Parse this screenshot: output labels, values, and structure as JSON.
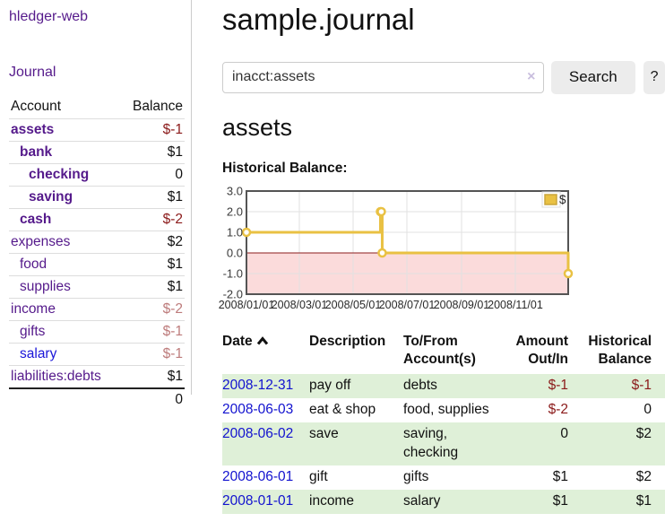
{
  "brand": "hledger-web",
  "nav": {
    "journal": "Journal"
  },
  "page": {
    "title": "sample.journal",
    "account_heading": "assets",
    "chart_title": "Historical Balance:"
  },
  "search": {
    "value": "inacct:assets",
    "clear_icon": "×",
    "submit_label": "Search",
    "help_label": "?"
  },
  "sidebar_table": {
    "account_header": "Account",
    "balance_header": "Balance",
    "rows": [
      {
        "name": "assets",
        "balance": "$-1",
        "indent": 1,
        "bold": true,
        "balance_style": "negstrong",
        "link_color": "purple"
      },
      {
        "name": "bank",
        "balance": "$1",
        "indent": 2,
        "bold": true,
        "balance_style": "normal",
        "link_color": "purple"
      },
      {
        "name": "checking",
        "balance": "0",
        "indent": 3,
        "bold": true,
        "balance_style": "normal",
        "link_color": "purple"
      },
      {
        "name": "saving",
        "balance": "$1",
        "indent": 3,
        "bold": true,
        "balance_style": "normal",
        "link_color": "purple"
      },
      {
        "name": "cash",
        "balance": "$-2",
        "indent": 2,
        "bold": true,
        "balance_style": "negstrong",
        "link_color": "purple"
      },
      {
        "name": "expenses",
        "balance": "$2",
        "indent": 1,
        "bold": false,
        "balance_style": "normal",
        "link_color": "purple"
      },
      {
        "name": "food",
        "balance": "$1",
        "indent": 2,
        "bold": false,
        "balance_style": "normal",
        "link_color": "purple"
      },
      {
        "name": "supplies",
        "balance": "$1",
        "indent": 2,
        "bold": false,
        "balance_style": "normal",
        "link_color": "purple"
      },
      {
        "name": "income",
        "balance": "$-2",
        "indent": 1,
        "bold": false,
        "balance_style": "negpale",
        "link_color": "purple"
      },
      {
        "name": "gifts",
        "balance": "$-1",
        "indent": 2,
        "bold": false,
        "balance_style": "negpale",
        "link_color": "purple"
      },
      {
        "name": "salary",
        "balance": "$-1",
        "indent": 2,
        "bold": false,
        "balance_style": "negpale",
        "link_color": "blue"
      },
      {
        "name": "liabilities:debts",
        "balance": "$1",
        "indent": 1,
        "bold": false,
        "balance_style": "normal",
        "link_color": "purple"
      }
    ],
    "total": "0"
  },
  "register_table": {
    "headers": {
      "date": "Date",
      "description": "Description",
      "accounts": "To/From Account(s)",
      "amount": "Amount Out/In",
      "balance": "Historical Balance"
    },
    "sort": "ascending",
    "rows": [
      {
        "date": "2008-12-31",
        "description": "pay off",
        "accounts": "debts",
        "amount": "$-1",
        "amount_neg": true,
        "balance": "$-1",
        "balance_neg": true
      },
      {
        "date": "2008-06-03",
        "description": "eat & shop",
        "accounts": "food, supplies",
        "amount": "$-2",
        "amount_neg": true,
        "balance": "0",
        "balance_neg": false
      },
      {
        "date": "2008-06-02",
        "description": "save",
        "accounts": "saving, checking",
        "amount": "0",
        "amount_neg": false,
        "balance": "$2",
        "balance_neg": false
      },
      {
        "date": "2008-06-01",
        "description": "gift",
        "accounts": "gifts",
        "amount": "$1",
        "amount_neg": false,
        "balance": "$2",
        "balance_neg": false
      },
      {
        "date": "2008-01-01",
        "description": "income",
        "accounts": "salary",
        "amount": "$1",
        "amount_neg": false,
        "balance": "$1",
        "balance_neg": false
      }
    ]
  },
  "chart_data": {
    "type": "line",
    "title": "Historical Balance:",
    "step": true,
    "series": [
      {
        "name": "$",
        "points": [
          [
            "2008-01-01",
            1
          ],
          [
            "2008-06-01",
            2
          ],
          [
            "2008-06-02",
            2
          ],
          [
            "2008-06-03",
            0
          ],
          [
            "2008-12-31",
            -1
          ]
        ]
      }
    ],
    "ylim": [
      -2,
      3
    ],
    "yticks": [
      "3.0",
      "2.0",
      "1.0",
      "0.0",
      "-1.0",
      "-2.0"
    ],
    "xticks": [
      "2008/01/01",
      "2008/03/01",
      "2008/05/01",
      "2008/07/01",
      "2008/09/01",
      "2008/11/01"
    ],
    "x_range": [
      "2008-01-01",
      "2008-12-31"
    ],
    "legend": {
      "label": "$",
      "position": "top-right"
    },
    "grid": true,
    "negative_region": true,
    "colors": {
      "line": "#e9c143",
      "marker_fill": "#ffffff",
      "negative_fill": "#fbdbdb",
      "zero_line": "#8b1d1d",
      "border": "#545454",
      "grid": "#e2e2e2"
    }
  }
}
